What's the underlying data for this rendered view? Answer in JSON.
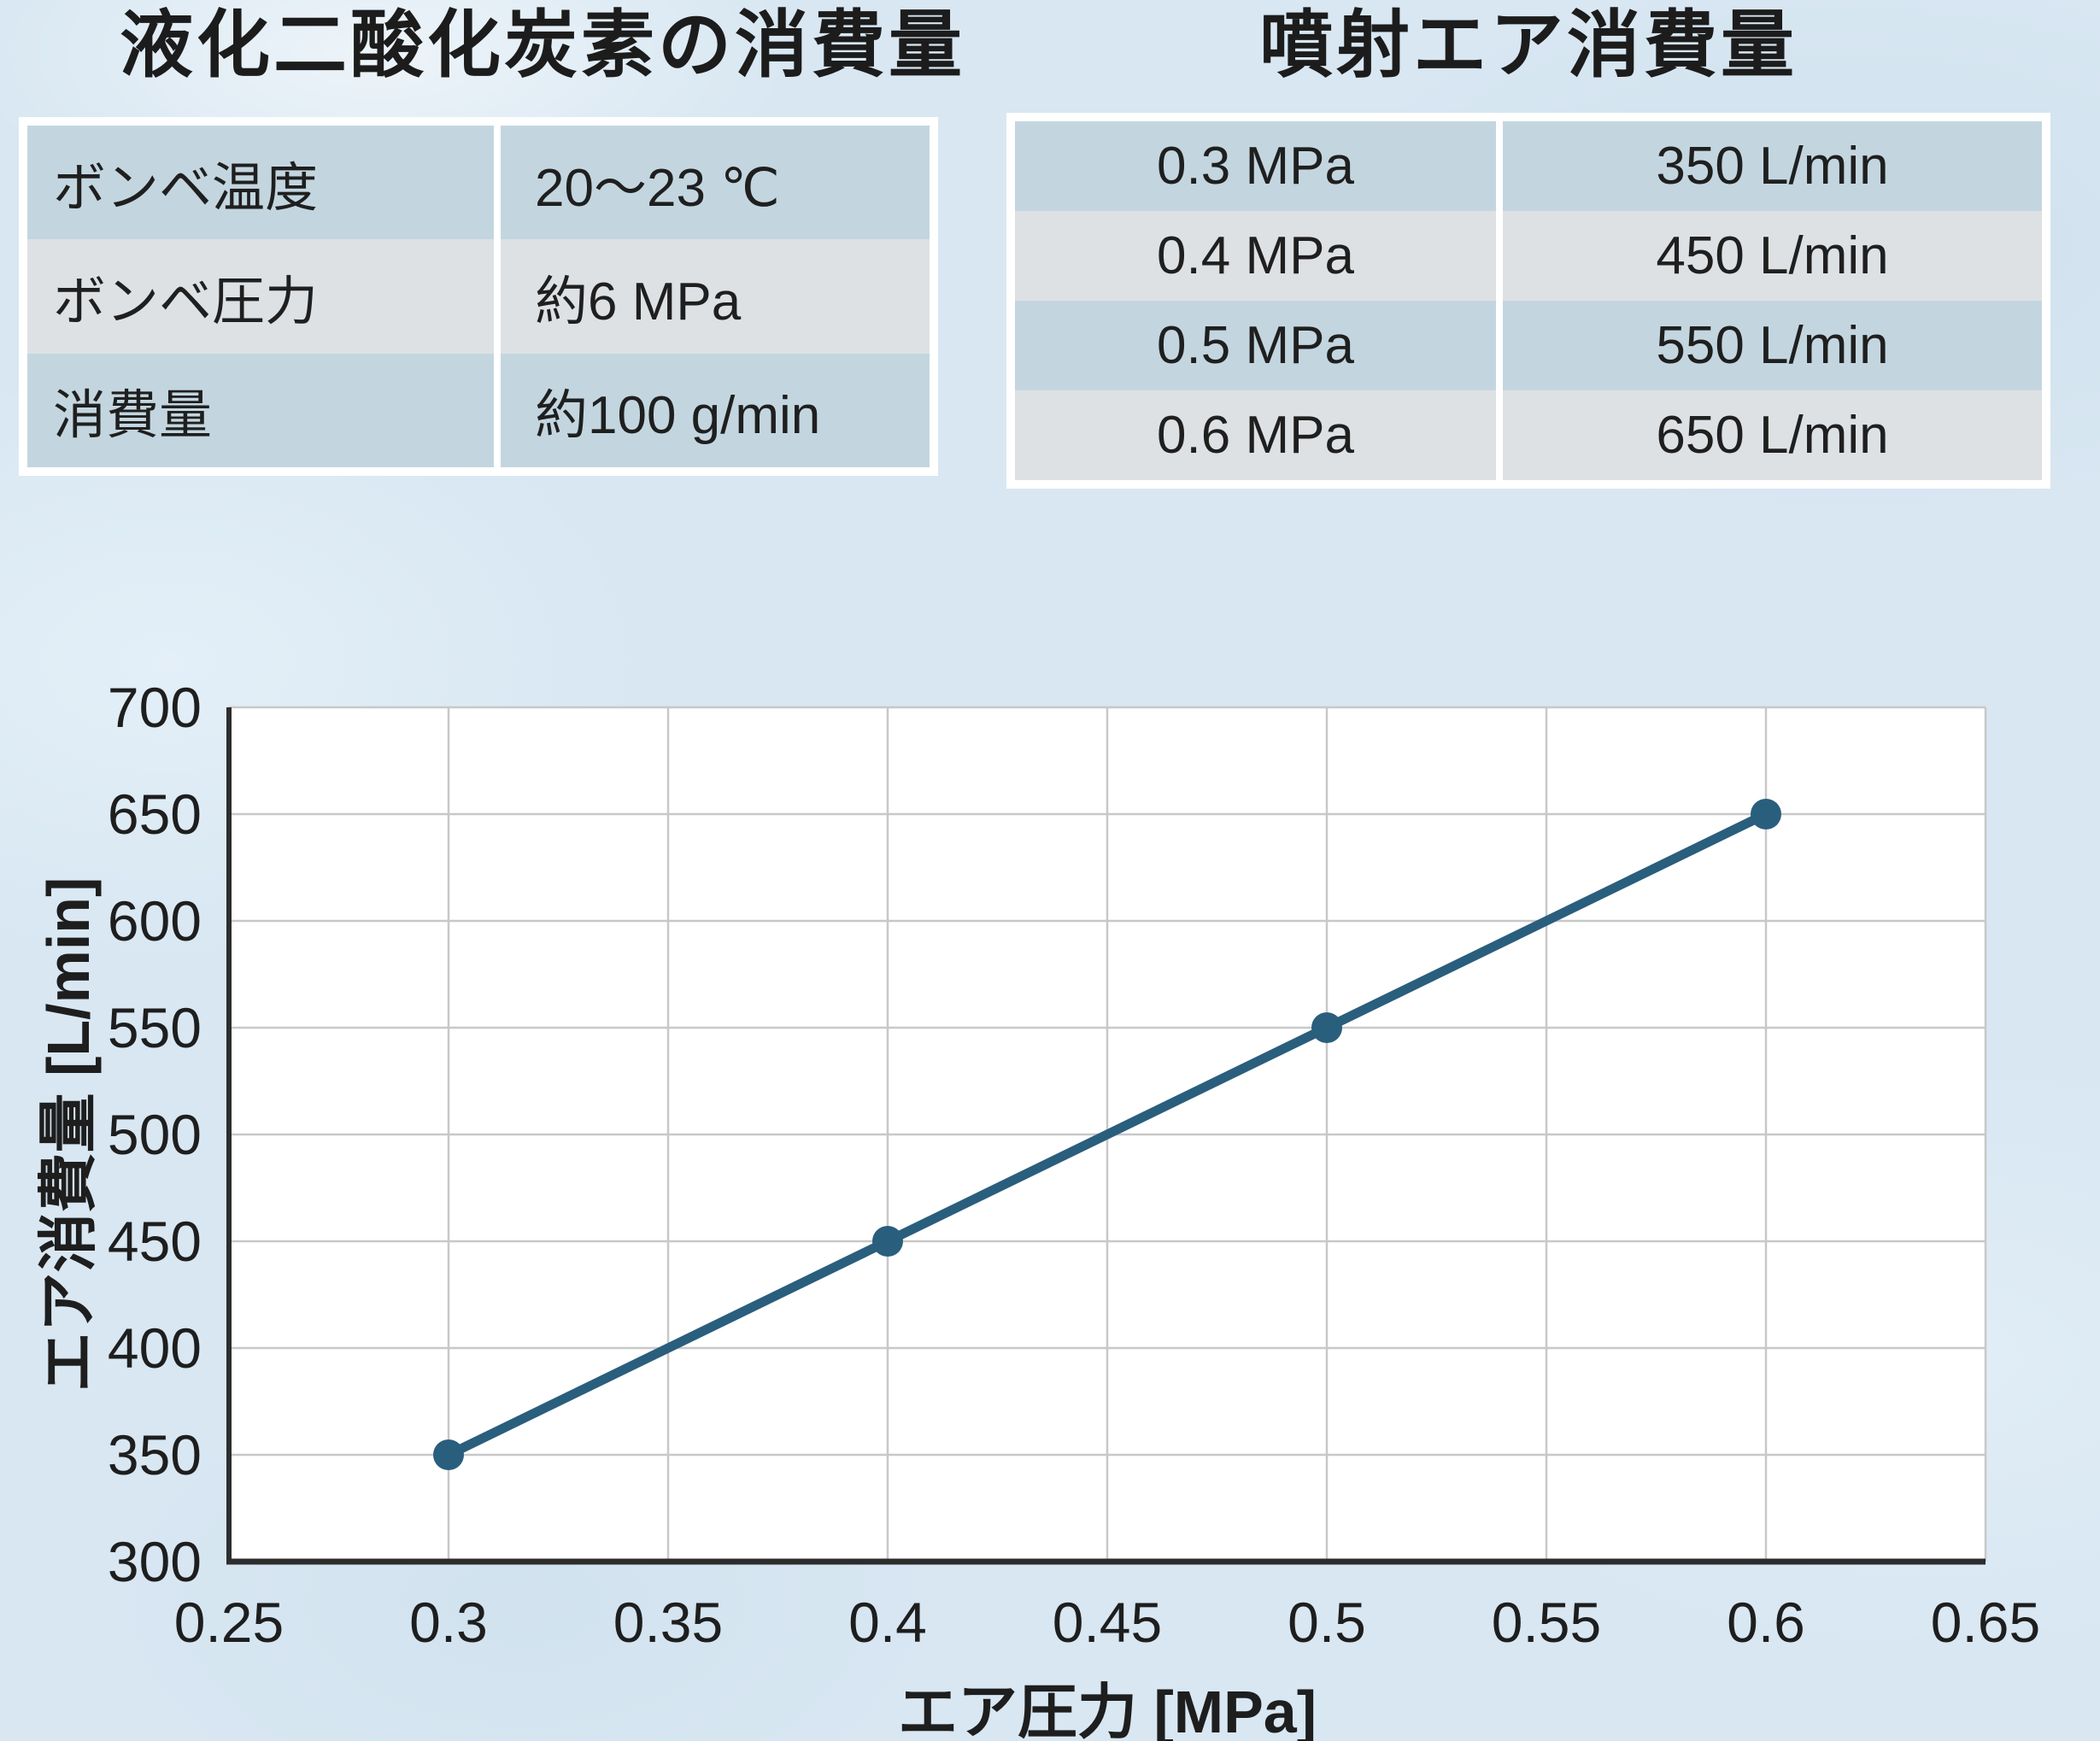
{
  "colors": {
    "background": "#d8e7f2",
    "table_row_blue": "#c3d6e0",
    "table_row_gray": "#dee1e4",
    "table_frame_white": "#ffffff",
    "text": "#1e1e1e",
    "chart_line": "#2a5e7d",
    "chart_grid": "#c8c8c8",
    "chart_axis": "#2d2d2d"
  },
  "co2_table": {
    "title": "液化二酸化炭素の消費量",
    "rows": [
      {
        "label": "ボンベ温度",
        "value": "20～23 ℃"
      },
      {
        "label": "ボンベ圧力",
        "value": "約6 MPa"
      },
      {
        "label": "消費量",
        "value": "約100 g/min"
      }
    ]
  },
  "air_table": {
    "title": "噴射エア消費量",
    "rows": [
      {
        "pressure": "0.3 MPa",
        "flow": "350 L/min"
      },
      {
        "pressure": "0.4 MPa",
        "flow": "450 L/min"
      },
      {
        "pressure": "0.5 MPa",
        "flow": "550 L/min"
      },
      {
        "pressure": "0.6 MPa",
        "flow": "650 L/min"
      }
    ]
  },
  "chart_data": {
    "type": "line",
    "x": [
      0.3,
      0.4,
      0.5,
      0.6
    ],
    "y": [
      350,
      450,
      550,
      650
    ],
    "xlabel": "エア圧力 [MPa]",
    "ylabel": "エア消費量 [L/min]",
    "xlim": [
      0.25,
      0.65
    ],
    "ylim": [
      300,
      700
    ],
    "x_ticks": [
      0.25,
      0.3,
      0.35,
      0.4,
      0.45,
      0.5,
      0.55,
      0.6,
      0.65
    ],
    "y_ticks": [
      300,
      350,
      400,
      450,
      500,
      550,
      600,
      650,
      700
    ],
    "x_tick_labels": [
      "0.25",
      "0.3",
      "0.35",
      "0.4",
      "0.45",
      "0.5",
      "0.55",
      "0.6",
      "0.65"
    ],
    "y_tick_labels": [
      "300",
      "350",
      "400",
      "450",
      "500",
      "550",
      "600",
      "650",
      "700"
    ],
    "grid": true,
    "legend": "none",
    "marker": "circle",
    "plot_background": "#ffffff",
    "line_color": "#2a5e7d",
    "grid_color": "#c8c8c8",
    "axis_color": "#2d2d2d"
  }
}
